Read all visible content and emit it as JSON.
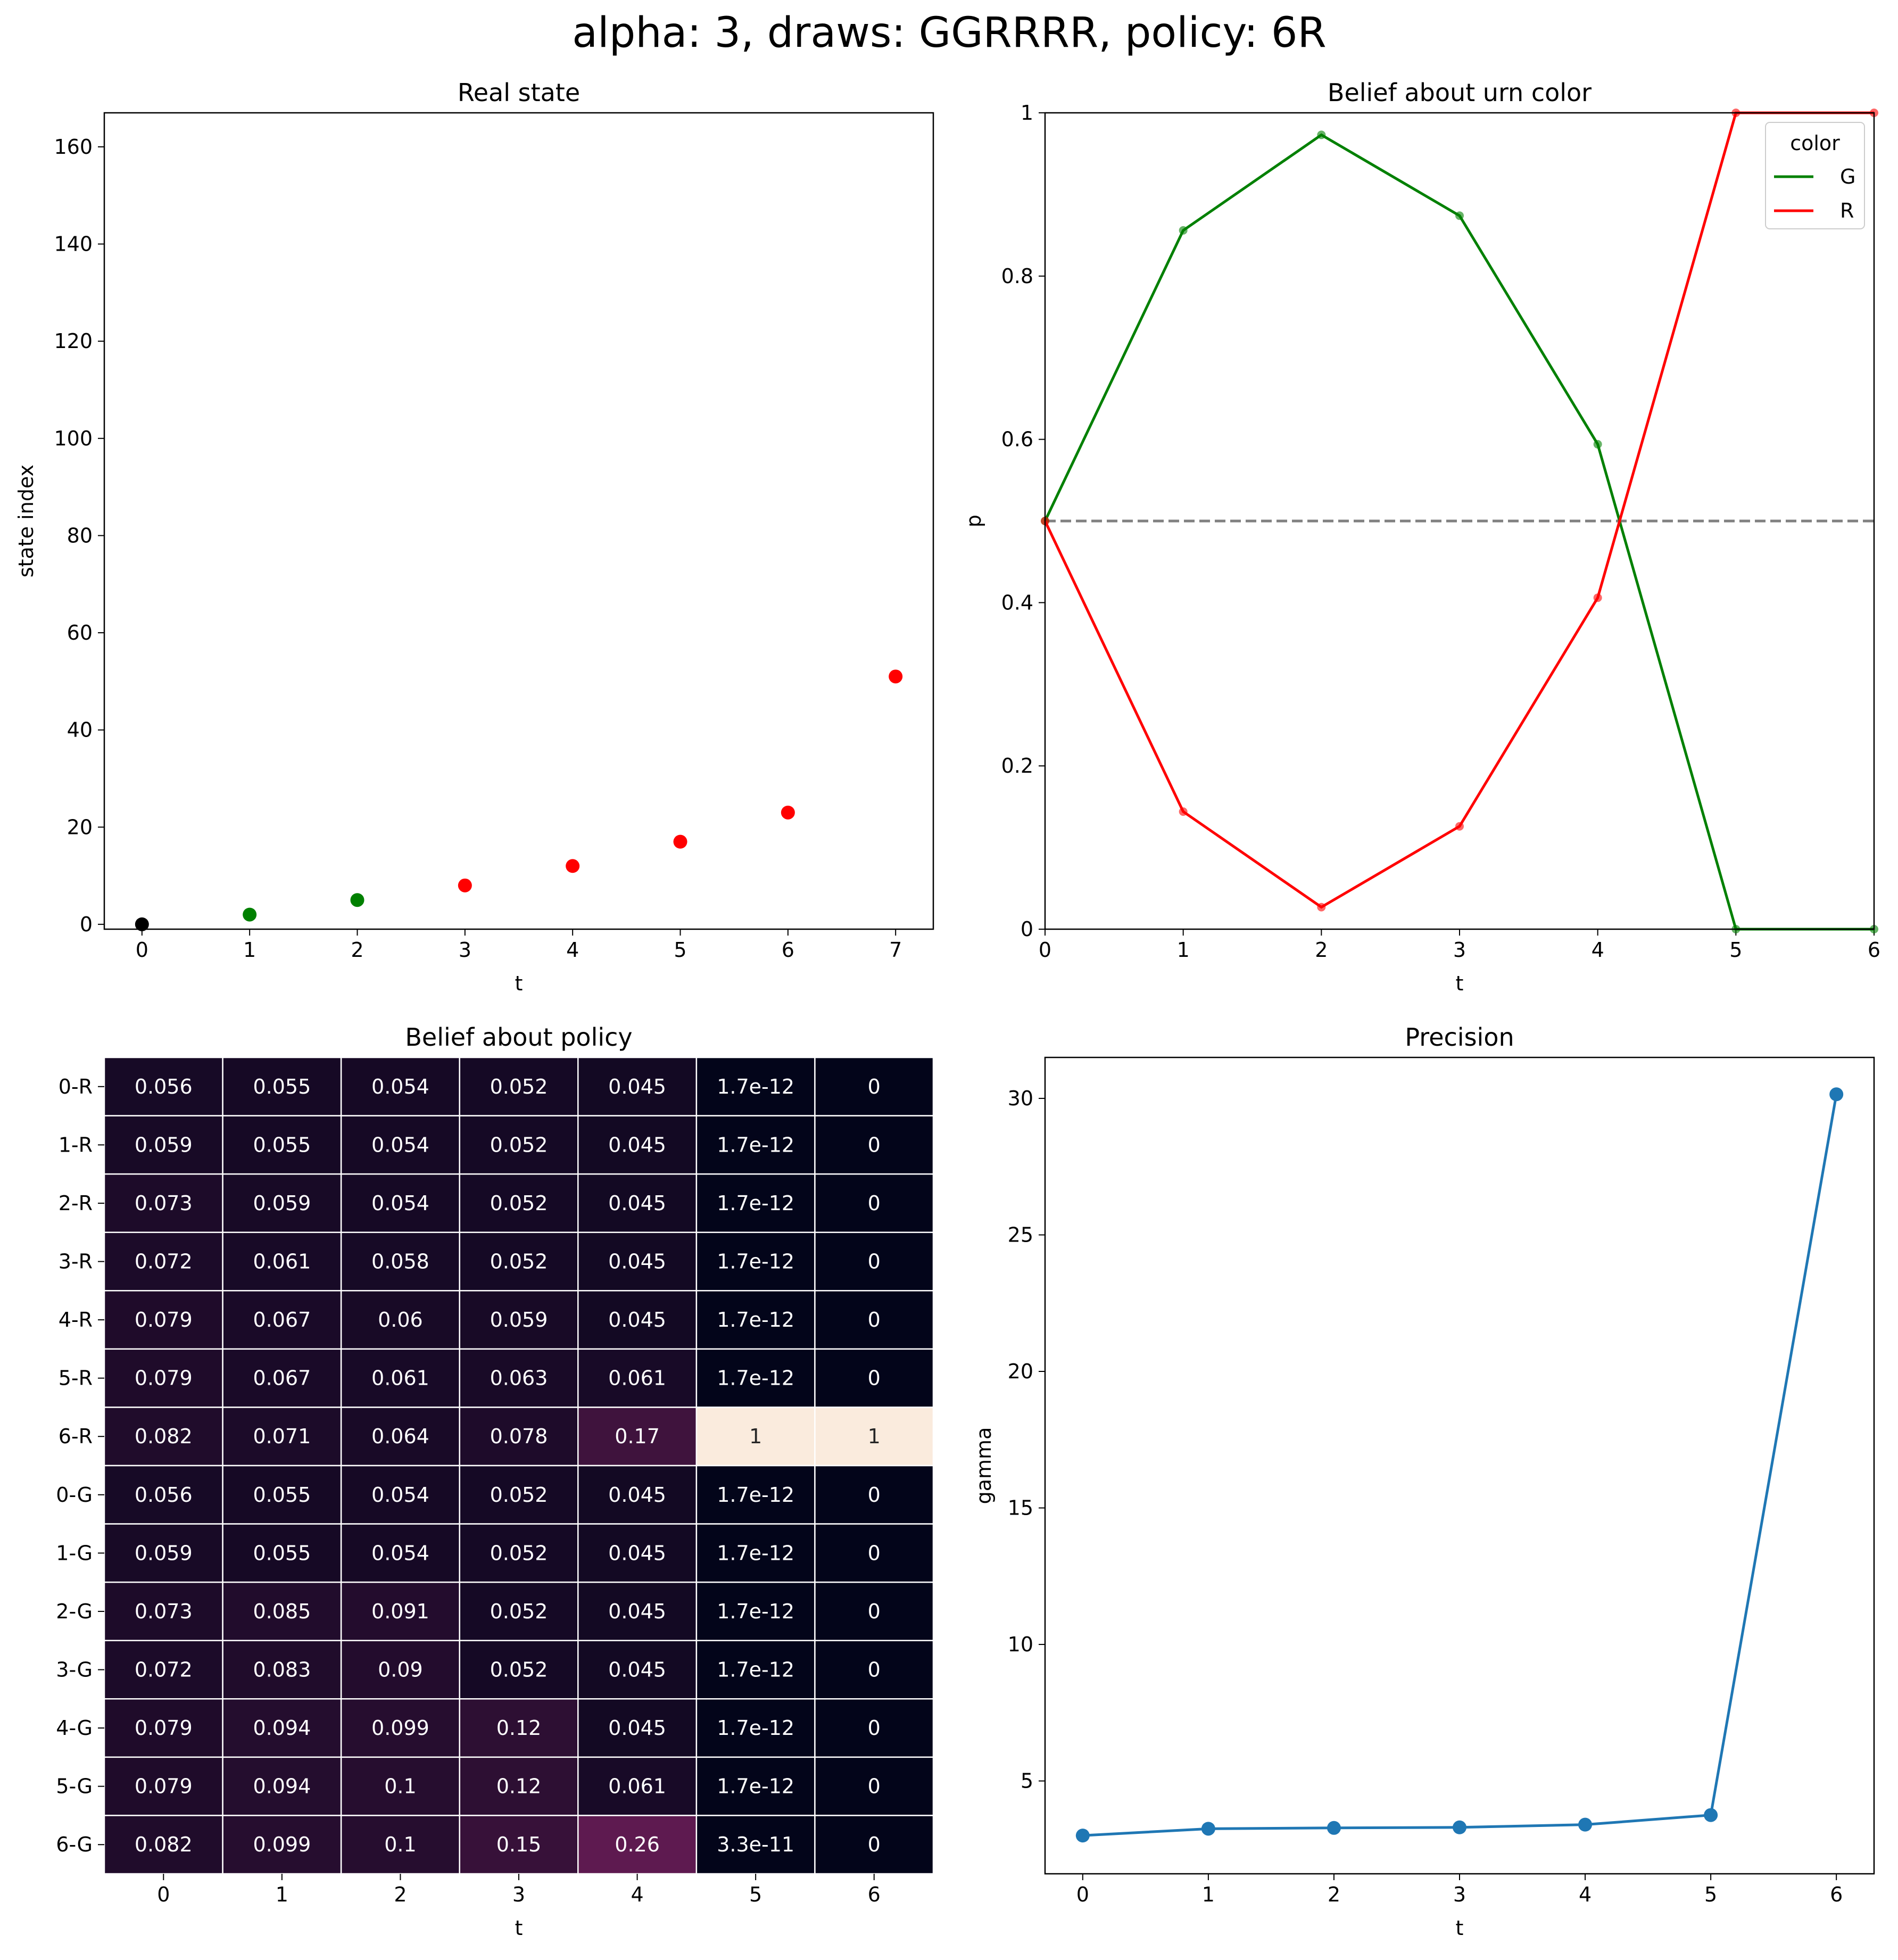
{
  "suptitle": "alpha: 3, draws: GGRRRR, policy: 6R",
  "colors": {
    "green": "#008000",
    "red": "#ff0000",
    "black": "#000000",
    "blue": "#1f77b4",
    "dashed": "#808080",
    "heat_low": "#03051a",
    "heat_mid": "#5e1a50",
    "heat_high": "#faebdd"
  },
  "chart_data": [
    {
      "id": "real_state",
      "type": "scatter",
      "title": "Real state",
      "xlabel": "t",
      "ylabel": "state index",
      "xlim": [
        -0.35,
        7.35
      ],
      "ylim": [
        -1,
        167
      ],
      "xticks": [
        0,
        1,
        2,
        3,
        4,
        5,
        6,
        7
      ],
      "yticks": [
        0,
        20,
        40,
        60,
        80,
        100,
        120,
        140,
        160
      ],
      "points": [
        {
          "x": 0,
          "y": 0,
          "color": "black"
        },
        {
          "x": 1,
          "y": 2,
          "color": "green"
        },
        {
          "x": 2,
          "y": 5,
          "color": "green"
        },
        {
          "x": 3,
          "y": 8,
          "color": "red"
        },
        {
          "x": 4,
          "y": 12,
          "color": "red"
        },
        {
          "x": 5,
          "y": 17,
          "color": "red"
        },
        {
          "x": 6,
          "y": 23,
          "color": "red"
        },
        {
          "x": 7,
          "y": 51,
          "color": "red"
        }
      ]
    },
    {
      "id": "urn_belief",
      "type": "line",
      "title": "Belief about urn color",
      "xlabel": "t",
      "ylabel": "p",
      "xlim": [
        0,
        6
      ],
      "ylim": [
        0,
        1
      ],
      "xticks": [
        0,
        1,
        2,
        3,
        4,
        5,
        6
      ],
      "yticks": [
        0.0,
        0.2,
        0.4,
        0.6,
        0.8,
        1.0
      ],
      "x": [
        0,
        1,
        2,
        3,
        4,
        5,
        6
      ],
      "legend_title": "color",
      "legend_position": "top-right",
      "reference_line": 0.5,
      "series": [
        {
          "name": "G",
          "color": "green",
          "values": [
            0.5,
            0.856,
            0.973,
            0.874,
            0.594,
            0.0,
            0.0
          ]
        },
        {
          "name": "R",
          "color": "red",
          "values": [
            0.5,
            0.144,
            0.027,
            0.126,
            0.406,
            1.0,
            1.0
          ]
        }
      ]
    },
    {
      "id": "policy_belief",
      "type": "heatmap",
      "title": "Belief about policy",
      "xlabel": "t",
      "columns": [
        "0",
        "1",
        "2",
        "3",
        "4",
        "5",
        "6"
      ],
      "rows": [
        "0-R",
        "1-R",
        "2-R",
        "3-R",
        "4-R",
        "5-R",
        "6-R",
        "0-G",
        "1-G",
        "2-G",
        "3-G",
        "4-G",
        "5-G",
        "6-G"
      ],
      "values": [
        [
          0.056,
          0.055,
          0.054,
          0.052,
          0.045,
          1.7e-12,
          0
        ],
        [
          0.059,
          0.055,
          0.054,
          0.052,
          0.045,
          1.7e-12,
          0
        ],
        [
          0.073,
          0.059,
          0.054,
          0.052,
          0.045,
          1.7e-12,
          0
        ],
        [
          0.072,
          0.061,
          0.058,
          0.052,
          0.045,
          1.7e-12,
          0
        ],
        [
          0.079,
          0.067,
          0.06,
          0.059,
          0.045,
          1.7e-12,
          0
        ],
        [
          0.079,
          0.067,
          0.061,
          0.063,
          0.061,
          1.7e-12,
          0
        ],
        [
          0.082,
          0.071,
          0.064,
          0.078,
          0.17,
          1,
          1
        ],
        [
          0.056,
          0.055,
          0.054,
          0.052,
          0.045,
          1.7e-12,
          0
        ],
        [
          0.059,
          0.055,
          0.054,
          0.052,
          0.045,
          1.7e-12,
          0
        ],
        [
          0.073,
          0.085,
          0.091,
          0.052,
          0.045,
          1.7e-12,
          0
        ],
        [
          0.072,
          0.083,
          0.09,
          0.052,
          0.045,
          1.7e-12,
          0
        ],
        [
          0.079,
          0.094,
          0.099,
          0.12,
          0.045,
          1.7e-12,
          0
        ],
        [
          0.079,
          0.094,
          0.1,
          0.12,
          0.061,
          1.7e-12,
          0
        ],
        [
          0.082,
          0.099,
          0.1,
          0.15,
          0.26,
          3.3e-11,
          0
        ]
      ],
      "labels": [
        [
          "0.056",
          "0.055",
          "0.054",
          "0.052",
          "0.045",
          "1.7e-12",
          "0"
        ],
        [
          "0.059",
          "0.055",
          "0.054",
          "0.052",
          "0.045",
          "1.7e-12",
          "0"
        ],
        [
          "0.073",
          "0.059",
          "0.054",
          "0.052",
          "0.045",
          "1.7e-12",
          "0"
        ],
        [
          "0.072",
          "0.061",
          "0.058",
          "0.052",
          "0.045",
          "1.7e-12",
          "0"
        ],
        [
          "0.079",
          "0.067",
          "0.06",
          "0.059",
          "0.045",
          "1.7e-12",
          "0"
        ],
        [
          "0.079",
          "0.067",
          "0.061",
          "0.063",
          "0.061",
          "1.7e-12",
          "0"
        ],
        [
          "0.082",
          "0.071",
          "0.064",
          "0.078",
          "0.17",
          "1",
          "1"
        ],
        [
          "0.056",
          "0.055",
          "0.054",
          "0.052",
          "0.045",
          "1.7e-12",
          "0"
        ],
        [
          "0.059",
          "0.055",
          "0.054",
          "0.052",
          "0.045",
          "1.7e-12",
          "0"
        ],
        [
          "0.073",
          "0.085",
          "0.091",
          "0.052",
          "0.045",
          "1.7e-12",
          "0"
        ],
        [
          "0.072",
          "0.083",
          "0.09",
          "0.052",
          "0.045",
          "1.7e-12",
          "0"
        ],
        [
          "0.079",
          "0.094",
          "0.099",
          "0.12",
          "0.045",
          "1.7e-12",
          "0"
        ],
        [
          "0.079",
          "0.094",
          "0.1",
          "0.12",
          "0.061",
          "1.7e-12",
          "0"
        ],
        [
          "0.082",
          "0.099",
          "0.1",
          "0.15",
          "0.26",
          "3.3e-11",
          "0"
        ]
      ]
    },
    {
      "id": "precision",
      "type": "line",
      "title": "Precision",
      "xlabel": "t",
      "ylabel": "gamma",
      "xlim": [
        -0.3,
        6.3
      ],
      "ylim": [
        1.6,
        31.5
      ],
      "xticks": [
        0,
        1,
        2,
        3,
        4,
        5,
        6
      ],
      "yticks": [
        5,
        10,
        15,
        20,
        25,
        30
      ],
      "x": [
        0,
        1,
        2,
        3,
        4,
        5,
        6
      ],
      "series": [
        {
          "color": "blue",
          "values": [
            3.0,
            3.25,
            3.28,
            3.3,
            3.4,
            3.75,
            30.15
          ]
        }
      ]
    }
  ]
}
